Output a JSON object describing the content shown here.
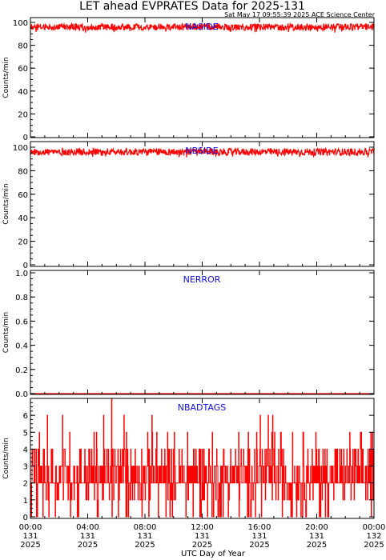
{
  "header": {
    "title": "LET ahead EVPRATES Data for 2025-131",
    "timestamp": "Sat May 17 09:55:39 2025 ACE Science Center"
  },
  "x_axis": {
    "label": "UTC Day of Year",
    "ticks": [
      {
        "time": "00:00",
        "day": "131",
        "year": "2025",
        "hour": 0
      },
      {
        "time": "04:00",
        "day": "131",
        "year": "2025",
        "hour": 4
      },
      {
        "time": "08:00",
        "day": "131",
        "year": "2025",
        "hour": 8
      },
      {
        "time": "12:00",
        "day": "131",
        "year": "2025",
        "hour": 12
      },
      {
        "time": "16:00",
        "day": "131",
        "year": "2025",
        "hour": 16
      },
      {
        "time": "20:00",
        "day": "131",
        "year": "2025",
        "hour": 20
      },
      {
        "time": "00:00",
        "day": "132",
        "year": "2025",
        "hour": 24
      }
    ]
  },
  "colors": {
    "series": "#ff0000",
    "panel_label": "#1010d8",
    "axes": "#000000"
  },
  "chart_data": [
    {
      "type": "line",
      "title": "NASIDE",
      "ylabel": "Counts/min",
      "ylim": [
        0,
        100
      ],
      "yticks": [
        0,
        20,
        40,
        60,
        80,
        100
      ],
      "xlim_hours": [
        0,
        24
      ],
      "series": [
        {
          "base": 96,
          "noise": 3,
          "description_range": [
            91,
            100
          ]
        }
      ]
    },
    {
      "type": "line",
      "title": "NBSIDE",
      "ylabel": "Counts/min",
      "ylim": [
        0,
        100
      ],
      "yticks": [
        0,
        20,
        40,
        60,
        80,
        100
      ],
      "xlim_hours": [
        0,
        24
      ],
      "series": [
        {
          "base": 96,
          "noise": 3,
          "description_range": [
            91,
            100
          ]
        }
      ]
    },
    {
      "type": "line",
      "title": "NERROR",
      "ylabel": "Counts/min",
      "ylim": [
        0,
        1
      ],
      "yticks": [
        0.0,
        0.2,
        0.4,
        0.6,
        0.8,
        1.0
      ],
      "xlim_hours": [
        0,
        24
      ],
      "series": [
        {
          "constant": 0
        }
      ]
    },
    {
      "type": "line",
      "title": "NBADTAGS",
      "ylabel": "Counts/min",
      "ylim": [
        0,
        7
      ],
      "yticks": [
        0,
        1,
        2,
        3,
        4,
        5,
        6
      ],
      "xlim_hours": [
        0,
        24
      ],
      "series": [
        {
          "value_range": [
            0,
            7
          ],
          "typical_range": [
            0,
            4
          ]
        }
      ]
    }
  ]
}
